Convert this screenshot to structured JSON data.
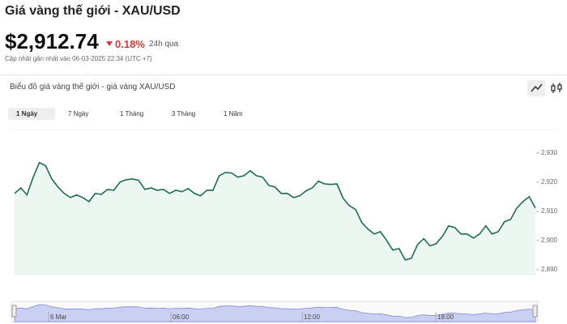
{
  "header": {
    "title": "Giá vàng thế giới - XAU/USD",
    "price": "$2,912.74",
    "change": "0.18%",
    "period": "24h qua",
    "updated": "Cập nhật gần nhất vào 06-03-2025 22:34 (UTC +7)"
  },
  "tabs": [
    "1 Ngày",
    "7 Ngày",
    "1 Tháng",
    "3 Tháng",
    "1 Năm"
  ],
  "navigator_labels": [
    "6 Mar",
    "06:00",
    "12:00",
    "18:00"
  ],
  "chart_data": {
    "type": "line",
    "title": "Biểu đồ giá vàng thế giới - giá vàng XAU/USD",
    "values": [
      2916.1,
      2918,
      2915.6,
      2921.7,
      2926.7,
      2925.6,
      2921.1,
      2918.3,
      2916.1,
      2914.7,
      2915.6,
      2914.7,
      2913.3,
      2916.1,
      2915.8,
      2917.5,
      2917.2,
      2920,
      2920.8,
      2921.1,
      2920.6,
      2917.5,
      2918,
      2917.2,
      2917.5,
      2916.1,
      2917.2,
      2916.7,
      2917.8,
      2916.1,
      2915.3,
      2917.2,
      2917.2,
      2922.2,
      2923.3,
      2923.1,
      2921.7,
      2922.2,
      2923.9,
      2922.2,
      2921.7,
      2918.9,
      2918.3,
      2916.1,
      2916.1,
      2914.7,
      2915.3,
      2917,
      2918,
      2920.3,
      2919.4,
      2919.2,
      2919.4,
      2914.4,
      2911.9,
      2910.6,
      2906.1,
      2903.9,
      2902.2,
      2903,
      2900,
      2896.7,
      2897.2,
      2893.3,
      2893.9,
      2898.6,
      2900.6,
      2898.1,
      2898.9,
      2901.4,
      2905,
      2904.4,
      2902.2,
      2902.2,
      2900.8,
      2902.2,
      2905,
      2902.2,
      2903,
      2906.4,
      2907.2,
      2911.1,
      2913.3,
      2915,
      2911.1
    ],
    "color": "#1d6b57",
    "ylim": [
      2888,
      2933
    ],
    "yticks": [
      {
        "value": 2890,
        "label": "2,890"
      },
      {
        "value": 2900,
        "label": "2,900"
      },
      {
        "value": 2910,
        "label": "2,910"
      },
      {
        "value": 2920,
        "label": "2,920"
      },
      {
        "value": 2930,
        "label": "2,930"
      }
    ]
  }
}
